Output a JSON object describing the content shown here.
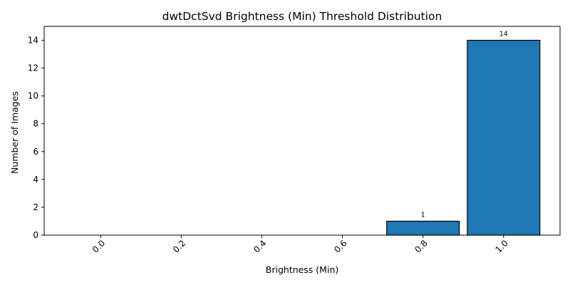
{
  "chart_data": {
    "type": "bar",
    "title": "dwtDctSvd Brightness (Min) Threshold Distribution",
    "xlabel": "Brightness (Min)",
    "ylabel": "Number of Images",
    "categories": [
      "0.0",
      "0.2",
      "0.4",
      "0.6",
      "0.8",
      "1.0"
    ],
    "values": [
      0,
      0,
      0,
      0,
      1,
      14
    ],
    "data_labels": [
      "",
      "",
      "",
      "",
      "1",
      "14"
    ],
    "ylim": [
      0,
      15
    ],
    "yticks": [
      0,
      2,
      4,
      6,
      8,
      10,
      12,
      14
    ],
    "bar_color": "#1f77b4",
    "bar_edge_color": "#000000",
    "grid": false,
    "legend": "none"
  }
}
